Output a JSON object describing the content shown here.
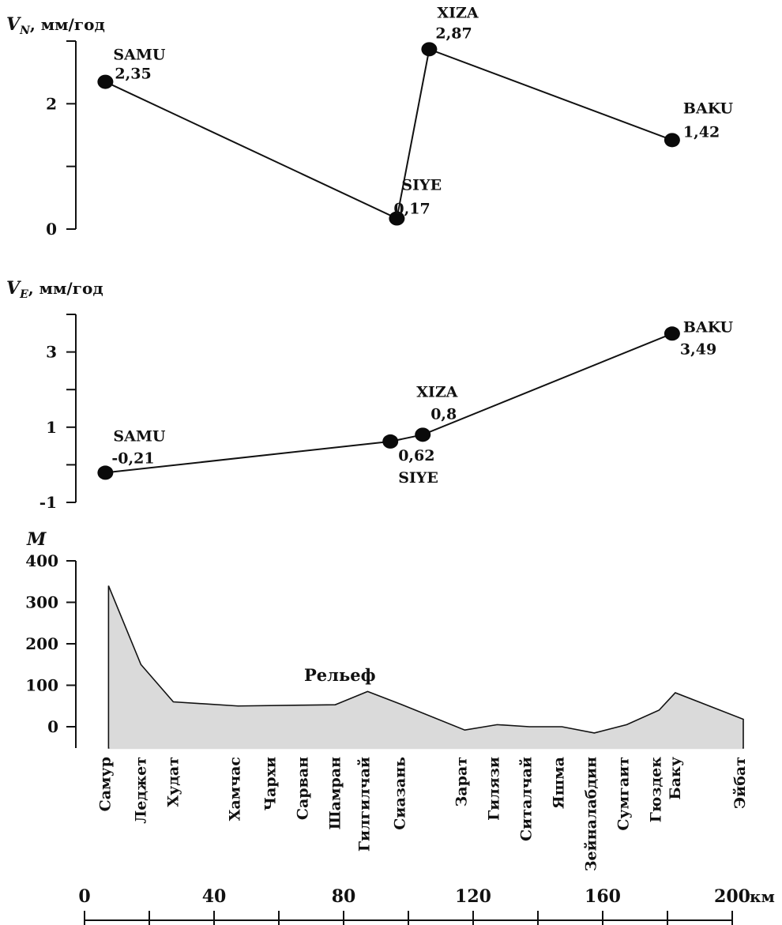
{
  "chart_data": [
    {
      "type": "line",
      "title": "",
      "ylabel": "V_N, мм/год",
      "ylabel_parts": {
        "symbol": "V",
        "sub": "N",
        "unit": ", мм/год"
      },
      "ylim": [
        0,
        3
      ],
      "yticks": [
        0,
        1,
        2,
        3
      ],
      "ytick_labels": [
        "0",
        "",
        "2",
        ""
      ],
      "xlim": [
        0,
        200
      ],
      "series": [
        {
          "x": [
            4,
            94,
            104,
            179
          ],
          "y": [
            2.35,
            0.17,
            2.87,
            1.42
          ],
          "stations": [
            "SAMU",
            "SIYE",
            "XIZA",
            "BAKU"
          ],
          "value_labels": [
            "2,35",
            "0,17",
            "2,87",
            "1,42"
          ]
        }
      ]
    },
    {
      "type": "line",
      "title": "",
      "ylabel": "V_E, мм/год",
      "ylabel_parts": {
        "symbol": "V",
        "sub": "E",
        "unit": ", мм/год"
      },
      "ylim": [
        -1,
        4
      ],
      "yticks": [
        -1,
        0,
        1,
        2,
        3,
        4
      ],
      "ytick_labels": [
        "-1",
        "",
        "1",
        "",
        "3",
        ""
      ],
      "xlim": [
        0,
        200
      ],
      "series": [
        {
          "x": [
            4,
            92,
            102,
            179
          ],
          "y": [
            -0.21,
            0.62,
            0.8,
            3.49
          ],
          "stations": [
            "SAMU",
            "SIYE",
            "XIZA",
            "BAKU"
          ],
          "value_labels": [
            "-0,21",
            "0,62",
            "0,8",
            "3,49"
          ]
        }
      ]
    },
    {
      "type": "area",
      "title": "",
      "ylabel": "M",
      "ylim": [
        0,
        400
      ],
      "yticks": [
        0,
        100,
        200,
        300,
        400
      ],
      "ytick_labels": [
        "0",
        "100",
        "200",
        "300",
        "400"
      ],
      "annotation": "Рельеф",
      "xlabel": "км",
      "xlim": [
        0,
        200
      ],
      "xticks": [
        0,
        20,
        40,
        60,
        80,
        100,
        120,
        140,
        160,
        180,
        200
      ],
      "xtick_labels": [
        "0",
        "",
        "40",
        "",
        "80",
        "",
        "120",
        "",
        "160",
        "",
        "200"
      ],
      "series": [
        {
          "x": [
            4,
            14,
            24,
            44,
            64,
            74,
            84,
            94,
            114,
            124,
            134,
            144,
            154,
            164,
            174,
            179,
            200
          ],
          "y": [
            340,
            150,
            60,
            50,
            52,
            53,
            85,
            55,
            -8,
            5,
            0,
            0,
            -15,
            5,
            40,
            82,
            18
          ]
        }
      ],
      "places": [
        {
          "name": "Самур",
          "x": 4
        },
        {
          "name": "Леджет",
          "x": 15
        },
        {
          "name": "Худат",
          "x": 25
        },
        {
          "name": "Хамчас",
          "x": 44
        },
        {
          "name": "Чархи",
          "x": 55
        },
        {
          "name": "Сарван",
          "x": 65
        },
        {
          "name": "Шамран",
          "x": 75
        },
        {
          "name": "Гилгилчай",
          "x": 84
        },
        {
          "name": "Сиазань",
          "x": 95
        },
        {
          "name": "Зарат",
          "x": 114
        },
        {
          "name": "Гилязи",
          "x": 124
        },
        {
          "name": "Ситалчай",
          "x": 134
        },
        {
          "name": "Яшма",
          "x": 144
        },
        {
          "name": "Зейналабдин",
          "x": 154
        },
        {
          "name": "Сумгаит",
          "x": 164
        },
        {
          "name": "Гюздек",
          "x": 174
        },
        {
          "name": "Баку",
          "x": 180
        },
        {
          "name": "Эйбат",
          "x": 200
        }
      ]
    }
  ]
}
